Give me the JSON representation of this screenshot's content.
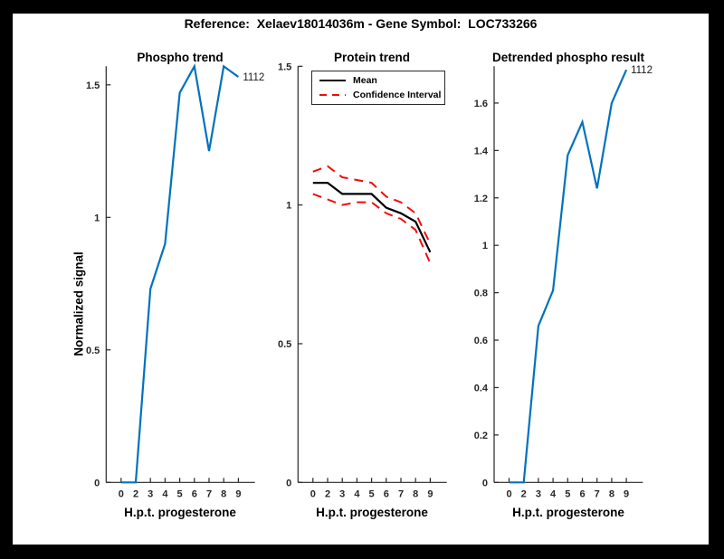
{
  "figure": {
    "title": "Reference:  Xelaev18014036m - Gene Symbol:  LOC733266",
    "background": "#000000",
    "canvas_color": "#ffffff",
    "axis_color": "#262626",
    "tick_label_color": "#262626"
  },
  "chart_data": [
    {
      "type": "line",
      "title": "Phospho trend",
      "xlabel": "H.p.t. progesterone",
      "ylabel": "Normalized signal",
      "x_values": [
        0,
        2,
        3,
        4,
        5,
        6,
        7,
        8,
        9
      ],
      "x_tick_labels": [
        "0",
        "2",
        "3",
        "4",
        "5",
        "6",
        "7",
        "8",
        "9"
      ],
      "y_ticks": [
        0,
        0.5,
        1,
        1.5
      ],
      "ylim": [
        0,
        1.57
      ],
      "grid": false,
      "end_label": "1112",
      "series": [
        {
          "name": "phospho-trend-1112",
          "color": "#0072BD",
          "style": "solid",
          "width": 2.2,
          "values": [
            0,
            0,
            0.73,
            0.9,
            1.47,
            1.57,
            1.25,
            1.57,
            1.53
          ]
        }
      ]
    },
    {
      "type": "line",
      "title": "Protein trend",
      "xlabel": "H.p.t. progesterone",
      "x_values": [
        0,
        2,
        3,
        4,
        5,
        6,
        7,
        8,
        9
      ],
      "x_tick_labels": [
        "0",
        "2",
        "3",
        "4",
        "5",
        "6",
        "7",
        "8",
        "9"
      ],
      "y_ticks": [
        0,
        0.5,
        1,
        1.5
      ],
      "ylim": [
        0,
        1.5
      ],
      "grid": false,
      "legend": {
        "position": "upper-left",
        "entries": [
          "Mean",
          "Confidence Interval"
        ]
      },
      "series": [
        {
          "name": "mean",
          "color": "#000000",
          "style": "solid",
          "width": 2.2,
          "values": [
            1.08,
            1.08,
            1.04,
            1.04,
            1.04,
            0.99,
            0.97,
            0.94,
            0.83
          ]
        },
        {
          "name": "confidence-interval-upper",
          "color": "#f40b0b",
          "style": "dashed",
          "width": 2,
          "values": [
            1.12,
            1.14,
            1.1,
            1.09,
            1.08,
            1.03,
            1.01,
            0.97,
            0.86
          ]
        },
        {
          "name": "confidence-interval-lower",
          "color": "#f40b0b",
          "style": "dashed",
          "width": 2,
          "values": [
            1.04,
            1.02,
            1.0,
            1.01,
            1.01,
            0.97,
            0.95,
            0.91,
            0.79
          ]
        }
      ]
    },
    {
      "type": "line",
      "title": "Detrended phospho result",
      "xlabel": "H.p.t. progesterone",
      "x_values": [
        0,
        2,
        3,
        4,
        5,
        6,
        7,
        8,
        9
      ],
      "x_tick_labels": [
        "0",
        "2",
        "3",
        "4",
        "5",
        "6",
        "7",
        "8",
        "9"
      ],
      "y_ticks": [
        0,
        0.2,
        0.4,
        0.6,
        0.8,
        1,
        1.2,
        1.4,
        1.6
      ],
      "ylim": [
        0,
        1.755
      ],
      "grid": false,
      "end_label": "1112",
      "series": [
        {
          "name": "detrended-phospho-1112",
          "color": "#0072BD",
          "style": "solid",
          "width": 2.2,
          "values": [
            0,
            0,
            0.66,
            0.81,
            1.38,
            1.52,
            1.24,
            1.6,
            1.74
          ]
        }
      ]
    }
  ]
}
